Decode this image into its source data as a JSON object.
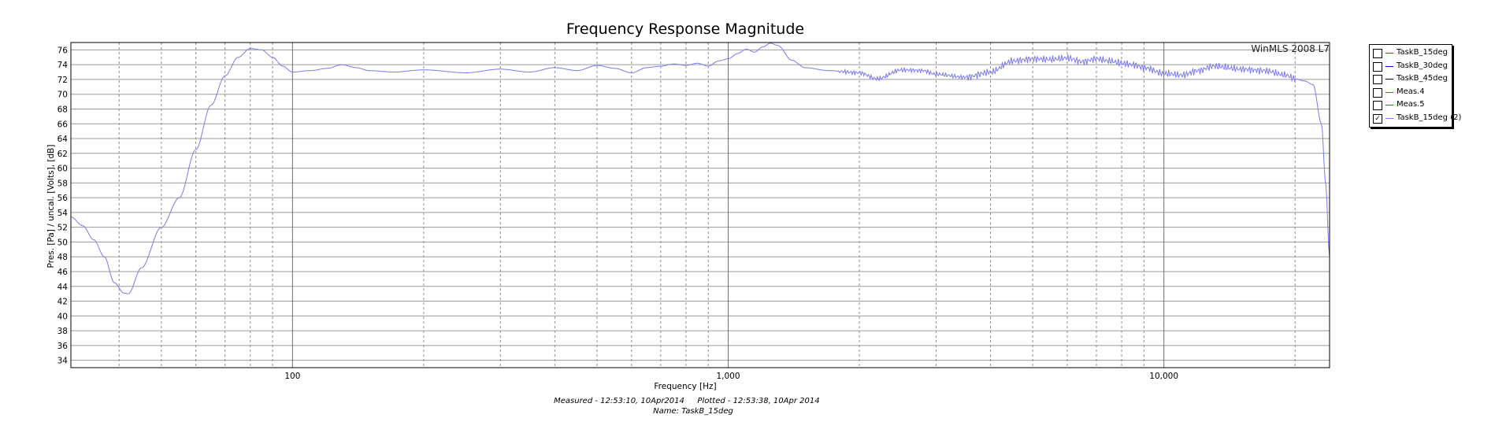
{
  "watermark": "WinMLS 2008 L7",
  "footer": {
    "measured": "Measured - 12:53:10, 10Apr2014",
    "plotted": "Plotted - 12:53:38, 10Apr 2014",
    "name": "Name: TaskB_15deg"
  },
  "legend": [
    {
      "label": "TaskB_15deg",
      "color": "#ff0000",
      "checked": false
    },
    {
      "label": "TaskB_30deg",
      "color": "#0000ff",
      "checked": false
    },
    {
      "label": "TaskB_45deg",
      "color": "#000000",
      "checked": false
    },
    {
      "label": "Meas.4",
      "color": "#00b000",
      "checked": false
    },
    {
      "label": "Meas.5",
      "color": "#cc00cc",
      "checked": false
    },
    {
      "label": "TaskB_15deg (2)",
      "color": "#7a7aee",
      "checked": true
    }
  ],
  "chart_data": {
    "type": "line",
    "title": "Frequency Response Magnitude",
    "xlabel": "Frequency [Hz]",
    "ylabel": "Pres. [Pa] / uncal. [Volts], [dB]",
    "xscale": "log",
    "xlim": [
      31,
      24000
    ],
    "ylim": [
      33,
      77
    ],
    "x_tick_labels": [
      {
        "value": 100,
        "label": "100"
      },
      {
        "value": 1000,
        "label": "1,000"
      },
      {
        "value": 10000,
        "label": "10,000"
      }
    ],
    "y_ticks": [
      34,
      36,
      38,
      40,
      42,
      44,
      46,
      48,
      50,
      52,
      54,
      56,
      58,
      60,
      62,
      64,
      66,
      68,
      70,
      72,
      74,
      76
    ],
    "grid": true,
    "legend_position": "right",
    "series": [
      {
        "name": "TaskB_15deg (2)",
        "color": "#7a7aee",
        "x": [
          31,
          33,
          35,
          37,
          39,
          41,
          42,
          45,
          50,
          55,
          60,
          65,
          70,
          75,
          80,
          85,
          90,
          95,
          100,
          110,
          120,
          130,
          140,
          150,
          170,
          200,
          250,
          300,
          350,
          400,
          450,
          500,
          550,
          600,
          650,
          700,
          750,
          800,
          850,
          900,
          950,
          1000,
          1050,
          1100,
          1150,
          1200,
          1250,
          1300,
          1400,
          1500,
          1700,
          2000,
          2200,
          2500,
          2800,
          3000,
          3500,
          4000,
          4500,
          5000,
          5500,
          6000,
          6500,
          7000,
          7500,
          8000,
          8500,
          9000,
          10000,
          11000,
          12000,
          13000,
          15000,
          17000,
          19000,
          20000,
          21000,
          22000,
          23000,
          23500,
          24000
        ],
        "y": [
          53.4,
          52.2,
          50.3,
          48.0,
          44.5,
          43.1,
          43.0,
          46.5,
          52.0,
          56.0,
          62.5,
          68.5,
          72.5,
          75.0,
          76.2,
          76.0,
          75.0,
          73.8,
          73.0,
          73.2,
          73.5,
          74.0,
          73.6,
          73.2,
          73.0,
          73.3,
          72.9,
          73.4,
          73.0,
          73.6,
          73.2,
          73.9,
          73.5,
          72.9,
          73.6,
          73.8,
          74.1,
          73.9,
          74.2,
          73.8,
          74.5,
          74.8,
          75.5,
          76.1,
          75.7,
          76.4,
          76.9,
          76.6,
          74.6,
          73.6,
          73.2,
          72.9,
          72.1,
          73.3,
          73.2,
          72.7,
          72.3,
          73.0,
          74.5,
          74.8,
          74.7,
          74.9,
          74.4,
          74.8,
          74.5,
          74.2,
          74.0,
          73.6,
          72.8,
          72.6,
          73.2,
          73.8,
          73.4,
          73.2,
          72.6,
          72.1,
          71.8,
          71.3,
          66.0,
          58.0,
          48.0
        ]
      }
    ]
  }
}
